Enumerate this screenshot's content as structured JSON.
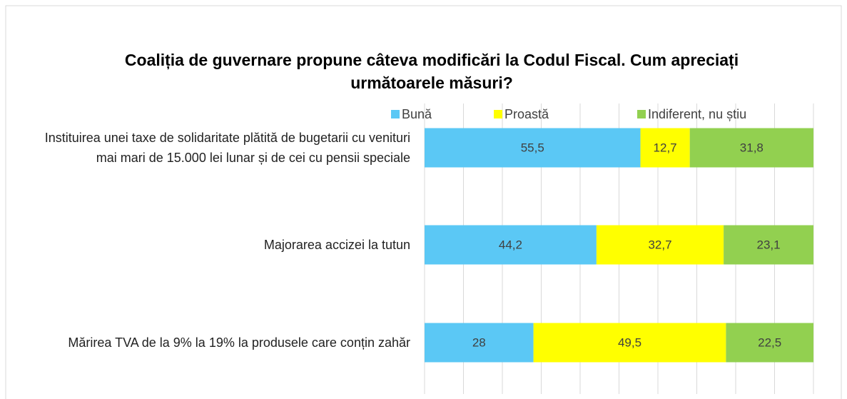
{
  "chart_data": {
    "type": "stacked_barh",
    "title": "Coaliția de guvernare propune câteva modificări la Codul Fiscal. Cum apreciați următoarele măsuri?",
    "categories": [
      "Instituirea unei taxe de solidaritate plătită de bugetarii cu venituri mai mari de 15.000 lei lunar și de cei cu pensii speciale",
      "Majorarea accizei la tutun",
      "Mărirea TVA de la 9% la 19% la produsele care conțin zahăr"
    ],
    "series": [
      {
        "name": "Bună",
        "color": "#5bc8f5",
        "values": [
          55.5,
          44.2,
          28
        ],
        "value_labels": [
          "55,5",
          "44,2",
          "28"
        ]
      },
      {
        "name": "Proastă",
        "color": "#ffff00",
        "values": [
          12.7,
          32.7,
          49.5
        ],
        "value_labels": [
          "12,7",
          "32,7",
          "49,5"
        ]
      },
      {
        "name": "Indiferent, nu știu",
        "color": "#92d050",
        "values": [
          31.8,
          23.1,
          22.5
        ],
        "value_labels": [
          "31,8",
          "23,1",
          "22,5"
        ]
      }
    ],
    "xlim": [
      0,
      100
    ],
    "xticks": [
      0,
      10,
      20,
      30,
      40,
      50,
      60,
      70,
      80,
      90,
      100
    ],
    "grid": true,
    "show_tick_labels": false,
    "legend": "top"
  }
}
